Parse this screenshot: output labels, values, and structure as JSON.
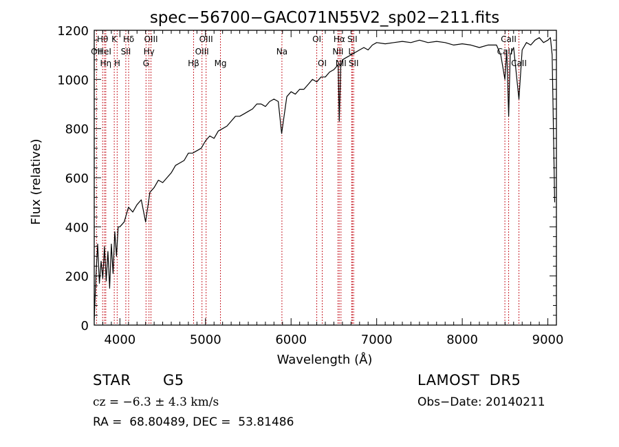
{
  "chart_data": {
    "type": "line",
    "title": "spec−56700−GAC071N55V2_sp02−211.fits",
    "xlabel": "Wavelength (Å)",
    "ylabel": "Flux (relative)",
    "xlim": [
      3700,
      9100
    ],
    "ylim": [
      0,
      1200
    ],
    "xticks": [
      4000,
      5000,
      6000,
      7000,
      8000,
      9000
    ],
    "yticks": [
      0,
      200,
      400,
      600,
      800,
      1000,
      1200
    ],
    "grid": false,
    "series": [
      {
        "x": [
          3700,
          3720,
          3740,
          3760,
          3780,
          3800,
          3820,
          3840,
          3860,
          3880,
          3900,
          3920,
          3940,
          3960,
          3980,
          4000,
          4050,
          4100,
          4150,
          4200,
          4250,
          4300,
          4350,
          4400,
          4450,
          4500,
          4550,
          4600,
          4650,
          4700,
          4750,
          4800,
          4850,
          4900,
          4950,
          5000,
          5050,
          5100,
          5150,
          5200,
          5250,
          5300,
          5350,
          5400,
          5450,
          5500,
          5550,
          5600,
          5650,
          5700,
          5750,
          5800,
          5850,
          5890,
          5950,
          6000,
          6050,
          6100,
          6150,
          6200,
          6250,
          6300,
          6350,
          6400,
          6450,
          6500,
          6550,
          6563,
          6580,
          6600,
          6650,
          6700,
          6750,
          6800,
          6850,
          6900,
          6950,
          7000,
          7100,
          7200,
          7300,
          7400,
          7500,
          7600,
          7700,
          7800,
          7900,
          8000,
          8100,
          8200,
          8300,
          8400,
          8450,
          8498,
          8520,
          8542,
          8560,
          8600,
          8662,
          8700,
          8750,
          8800,
          8850,
          8900,
          8950,
          9000,
          9030,
          9050,
          9080
        ],
        "values": [
          20,
          200,
          330,
          170,
          260,
          190,
          320,
          180,
          300,
          150,
          330,
          210,
          380,
          280,
          400,
          400,
          420,
          480,
          460,
          490,
          510,
          420,
          540,
          560,
          590,
          580,
          600,
          620,
          650,
          660,
          670,
          700,
          700,
          710,
          720,
          750,
          770,
          760,
          790,
          800,
          810,
          830,
          850,
          850,
          860,
          870,
          880,
          900,
          900,
          890,
          910,
          920,
          910,
          780,
          930,
          950,
          940,
          960,
          960,
          980,
          1000,
          990,
          1010,
          1010,
          1030,
          1040,
          1060,
          830,
          1050,
          1080,
          1090,
          1100,
          1110,
          1120,
          1130,
          1120,
          1140,
          1150,
          1145,
          1150,
          1155,
          1150,
          1160,
          1150,
          1155,
          1150,
          1140,
          1145,
          1140,
          1130,
          1140,
          1140,
          1100,
          1000,
          1120,
          850,
          1100,
          1130,
          920,
          1120,
          1150,
          1140,
          1160,
          1170,
          1150,
          1160,
          1170,
          1100,
          500
        ]
      }
    ],
    "line_marks": [
      {
        "label": "OII",
        "x": 3727,
        "row": 2
      },
      {
        "label": "Hθ",
        "x": 3798,
        "row": 1
      },
      {
        "label": "HeI",
        "x": 3820,
        "row": 2
      },
      {
        "label": "Hη",
        "x": 3835,
        "row": 3
      },
      {
        "label": "K",
        "x": 3934,
        "row": 1
      },
      {
        "label": "H",
        "x": 3968,
        "row": 3
      },
      {
        "label": "SII",
        "x": 4069,
        "row": 2
      },
      {
        "label": "Hδ",
        "x": 4102,
        "row": 1
      },
      {
        "label": "G",
        "x": 4305,
        "row": 3
      },
      {
        "label": "Hγ",
        "x": 4340,
        "row": 2
      },
      {
        "label": "OIII",
        "x": 4363,
        "row": 1
      },
      {
        "label": "Hβ",
        "x": 4861,
        "row": 3
      },
      {
        "label": "OIII",
        "x": 4959,
        "row": 2
      },
      {
        "label": "OIII",
        "x": 5007,
        "row": 1
      },
      {
        "label": "Mg",
        "x": 5175,
        "row": 3
      },
      {
        "label": "Na",
        "x": 5893,
        "row": 2
      },
      {
        "label": "OI",
        "x": 6300,
        "row": 1
      },
      {
        "label": "OI",
        "x": 6364,
        "row": 3
      },
      {
        "label": "NII",
        "x": 6548,
        "row": 2
      },
      {
        "label": "Hα",
        "x": 6563,
        "row": 1
      },
      {
        "label": "NII",
        "x": 6583,
        "row": 3
      },
      {
        "label": "Li",
        "x": 6708,
        "row": 2
      },
      {
        "label": "SII",
        "x": 6716,
        "row": 1
      },
      {
        "label": "SII",
        "x": 6731,
        "row": 3
      },
      {
        "label": "CaII",
        "x": 8498,
        "row": 2
      },
      {
        "label": "CaII",
        "x": 8542,
        "row": 1
      },
      {
        "label": "CaII",
        "x": 8662,
        "row": 3
      }
    ]
  },
  "info": {
    "object_class": "STAR",
    "subclass": "G5",
    "survey": "LAMOST  DR5",
    "redshift": "cz = −6.3 ± 4.3 km/s",
    "obs_date": "Obs−Date: 20140211",
    "coords": "RA =  68.80489, DEC =  53.81486"
  }
}
